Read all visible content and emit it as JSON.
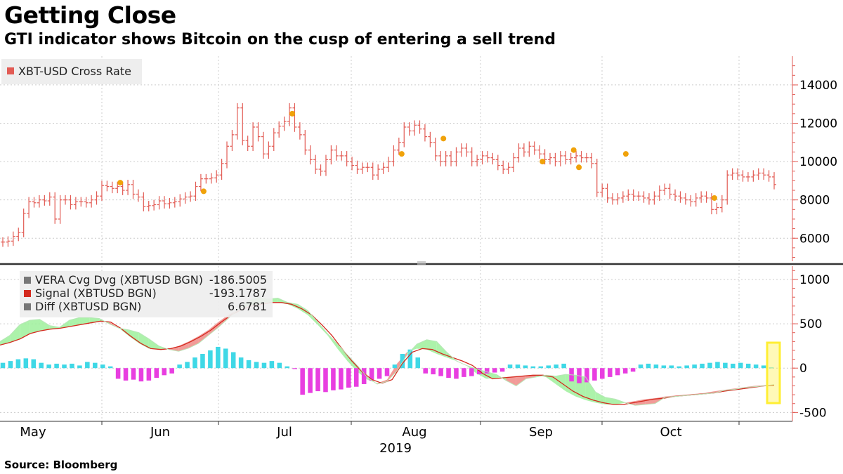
{
  "header": {
    "title": "Getting Close",
    "subtitle": "GTI indicator shows Bitcoin on the cusp of entering a sell trend"
  },
  "footer": {
    "source": "Source: Bloomberg"
  },
  "colors": {
    "price": "#e25b54",
    "signal_dot": "#f0a20a",
    "vera": "#777777",
    "signal_line": "#d42a1f",
    "diff_pos": "#3fd8e6",
    "diff_neg": "#e83ee0",
    "fill_up": "#9df09b",
    "fill_down": "#f08a86",
    "highlight": "#ffee33",
    "grid": "#cccccc",
    "axis": "#e25b54"
  },
  "chart_data": [
    {
      "type": "line",
      "style": "OHLC bars",
      "legend": [
        {
          "label": "XBT-USD Cross Rate",
          "color": "#e25b54"
        }
      ],
      "legend_position": "top-left",
      "y_ticks": [
        6000,
        8000,
        10000,
        12000,
        14000
      ],
      "ylim": [
        4800,
        15500
      ],
      "x_ticks": [
        "May",
        "Jun",
        "Jul",
        "Aug",
        "Sep",
        "Oct"
      ],
      "x_year": "2019",
      "series": [
        {
          "name": "XBT-USD Cross Rate",
          "values": [
            5800,
            5850,
            6100,
            6300,
            7300,
            7900,
            7850,
            8000,
            7950,
            8150,
            7000,
            8000,
            8000,
            7750,
            7900,
            7900,
            7850,
            8000,
            8200,
            8750,
            8700,
            8600,
            8700,
            8500,
            8800,
            8300,
            8150,
            7650,
            7700,
            7750,
            7950,
            7800,
            7850,
            7900,
            8050,
            8150,
            8200,
            8700,
            9100,
            9100,
            9150,
            9300,
            9900,
            10800,
            11400,
            12800,
            11100,
            10800,
            11800,
            11300,
            10400,
            10800,
            11500,
            11850,
            12100,
            12800,
            11800,
            11400,
            10600,
            10100,
            9600,
            9500,
            10100,
            10600,
            10300,
            10300,
            10000,
            9800,
            9600,
            9700,
            9700,
            9300,
            9600,
            9700,
            10000,
            10600,
            11000,
            11800,
            11600,
            11900,
            11700,
            11300,
            11000,
            10300,
            10000,
            10300,
            10000,
            10500,
            10700,
            10500,
            10000,
            10100,
            10300,
            10200,
            10100,
            9800,
            9600,
            9700,
            10200,
            10700,
            10500,
            10800,
            10600,
            10400,
            10100,
            10200,
            10000,
            10300,
            10100,
            10200,
            10300,
            10200,
            10200,
            9900,
            8400,
            8600,
            8100,
            8000,
            8100,
            8200,
            8300,
            8200,
            8200,
            8100,
            8000,
            8200,
            8500,
            8600,
            8300,
            8200,
            8100,
            8000,
            7900,
            8100,
            8200,
            8100,
            7500,
            7600,
            8000,
            9300,
            9400,
            9300,
            9200,
            9200,
            9300,
            9400,
            9300,
            9200,
            8800
          ]
        }
      ],
      "signal_markers": [
        {
          "index": 22,
          "value": 8900
        },
        {
          "index": 38,
          "value": 8450
        },
        {
          "index": 55,
          "value": 12500
        },
        {
          "index": 76,
          "value": 10400
        },
        {
          "index": 84,
          "value": 11200
        },
        {
          "index": 103,
          "value": 10000
        },
        {
          "index": 109,
          "value": 10600
        },
        {
          "index": 110,
          "value": 9700
        },
        {
          "index": 119,
          "value": 10400
        },
        {
          "index": 136,
          "value": 8100
        }
      ]
    },
    {
      "type": "line",
      "legend": [
        {
          "label": "VERA Cvg Dvg (XBTUSD BGN)",
          "value": "-186.5005",
          "color": "#777777"
        },
        {
          "label": "Signal (XBTUSD BGN)",
          "value": "-193.1787",
          "color": "#d42a1f"
        },
        {
          "label": "Diff (XBTUSD BGN)",
          "value": "6.6781",
          "color": "#777777"
        }
      ],
      "legend_position": "top-left",
      "y_ticks": [
        -500,
        0,
        500,
        1000
      ],
      "ylim": [
        -600,
        1150
      ],
      "series": [
        {
          "name": "VERA Cvg Dvg (XBTUSD BGN)",
          "values": [
            300,
            370,
            490,
            540,
            550,
            480,
            460,
            540,
            570,
            570,
            560,
            500,
            450,
            430,
            400,
            330,
            250,
            210,
            190,
            225,
            280,
            370,
            460,
            560,
            660,
            760,
            800,
            780,
            790,
            740,
            720,
            650,
            520,
            390,
            270,
            150,
            30,
            -100,
            -180,
            -150,
            -30,
            150,
            270,
            320,
            300,
            180,
            80,
            30,
            -10,
            -40,
            -70,
            -140,
            -200,
            -120,
            -100,
            -80,
            -90,
            -70,
            -80,
            -100,
            -270,
            -330,
            -350,
            -390,
            -420,
            -410,
            -400,
            -330,
            -320,
            -310,
            -300,
            -290,
            -280,
            -250,
            -240,
            -220,
            -210,
            -200,
            -186.5005
          ]
        },
        {
          "name": "Signal (XBTUSD BGN)",
          "values": [
            260,
            290,
            330,
            390,
            420,
            440,
            450,
            470,
            490,
            510,
            530,
            520,
            450,
            360,
            280,
            220,
            210,
            220,
            250,
            300,
            360,
            430,
            520,
            600,
            660,
            700,
            720,
            740,
            740,
            720,
            670,
            600,
            490,
            370,
            220,
            80,
            -40,
            -130,
            -170,
            -130,
            50,
            180,
            220,
            210,
            160,
            120,
            80,
            30,
            -60,
            -120,
            -110,
            -100,
            -90,
            -80,
            -80,
            -100,
            -180,
            -260,
            -320,
            -360,
            -390,
            -410,
            -410,
            -390,
            -370,
            -350,
            -340,
            -320,
            -310,
            -300,
            -290,
            -280,
            -260,
            -245,
            -230,
            -215,
            -200,
            -193.1787
          ]
        },
        {
          "name": "Diff (XBTUSD BGN)",
          "values": [
            60,
            80,
            100,
            110,
            100,
            60,
            40,
            50,
            40,
            50,
            30,
            70,
            60,
            40,
            20,
            -120,
            -140,
            -130,
            -150,
            -140,
            -110,
            -80,
            -60,
            40,
            70,
            120,
            160,
            200,
            240,
            220,
            180,
            120,
            90,
            70,
            60,
            80,
            60,
            20,
            -10,
            -300,
            -280,
            -260,
            -270,
            -250,
            -240,
            -220,
            -210,
            -180,
            -140,
            -120,
            -90,
            40,
            160,
            210,
            120,
            -60,
            -70,
            -90,
            -110,
            -120,
            -100,
            -90,
            -70,
            -60,
            -50,
            -40,
            40,
            40,
            30,
            20,
            20,
            30,
            40,
            50,
            -150,
            -170,
            -160,
            -140,
            -120,
            -100,
            -80,
            -60,
            -40,
            40,
            50,
            40,
            30,
            30,
            20,
            30,
            40,
            50,
            60,
            70,
            60,
            50,
            60,
            50,
            40,
            30,
            6.6781
          ]
        }
      ]
    }
  ]
}
